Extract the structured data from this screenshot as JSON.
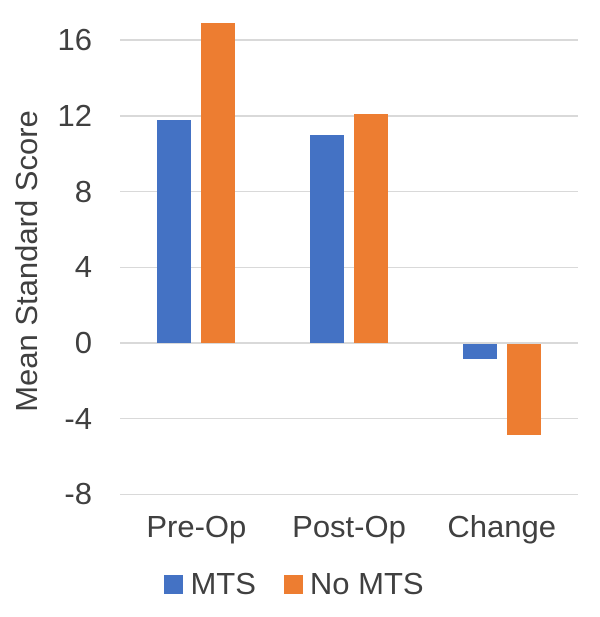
{
  "chart_data": {
    "type": "bar",
    "ylabel": "Mean Standard Score",
    "xlabel": "",
    "categories": [
      "Pre-Op",
      "Post-Op",
      "Change"
    ],
    "series": [
      {
        "name": "MTS",
        "color": "#4472C4",
        "values": [
          11.8,
          11.0,
          -0.8
        ]
      },
      {
        "name": "No MTS",
        "color": "#ED7D31",
        "values": [
          16.9,
          12.1,
          -4.8
        ]
      }
    ],
    "yticks": [
      16,
      12,
      8,
      4,
      0,
      -4,
      -8
    ],
    "ylim": [
      -8,
      17.2
    ],
    "grid": true,
    "legend_position": "bottom",
    "colors": {
      "grid": "#D9D9D9",
      "text": "#404040",
      "background": "#FFFFFF"
    }
  }
}
